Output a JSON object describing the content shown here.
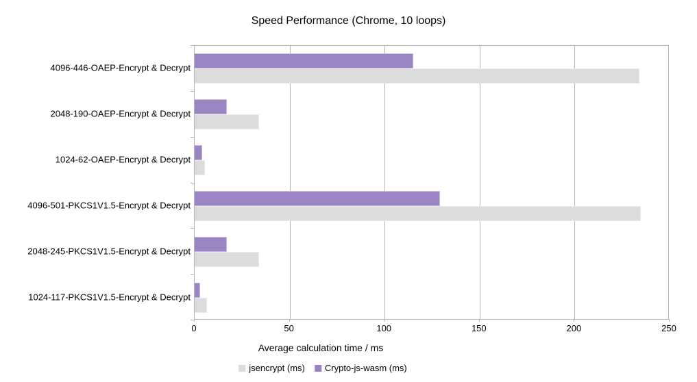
{
  "chart_data": {
    "type": "bar",
    "orientation": "horizontal",
    "title": "Speed Performance (Chrome, 10 loops)",
    "xlabel": "Average calculation time / ms",
    "ylabel": "",
    "xlim": [
      0,
      250
    ],
    "x_ticks": [
      0,
      50,
      100,
      150,
      200,
      250
    ],
    "grid": true,
    "legend_position": "bottom-center",
    "categories": [
      "4096-446-OAEP-Encrypt & Decrypt",
      "2048-190-OAEP-Encrypt & Decrypt",
      "1024-62-OAEP-Encrypt & Decrypt",
      "4096-501-PKCS1V1.5-Encrypt & Decrypt",
      "2048-245-PKCS1V1.5-Encrypt & Decrypt",
      "1024-117-PKCS1V1.5-Encrypt & Decrypt"
    ],
    "series": [
      {
        "name": "jsencrypt (ms)",
        "color": "#dcdcdc",
        "border_color": "#ebebeb",
        "values": [
          234,
          34,
          5.5,
          235,
          34,
          6.5
        ]
      },
      {
        "name": "Crypto-js-wasm (ms)",
        "color": "#9a85c2",
        "border_color": "#c6bade",
        "values": [
          115,
          17,
          4,
          129,
          17,
          3
        ]
      }
    ]
  },
  "colors": {
    "background": "#ffffff",
    "grid": "#b3b3b3",
    "axis": "#b3b3b3",
    "text": "#000000"
  }
}
